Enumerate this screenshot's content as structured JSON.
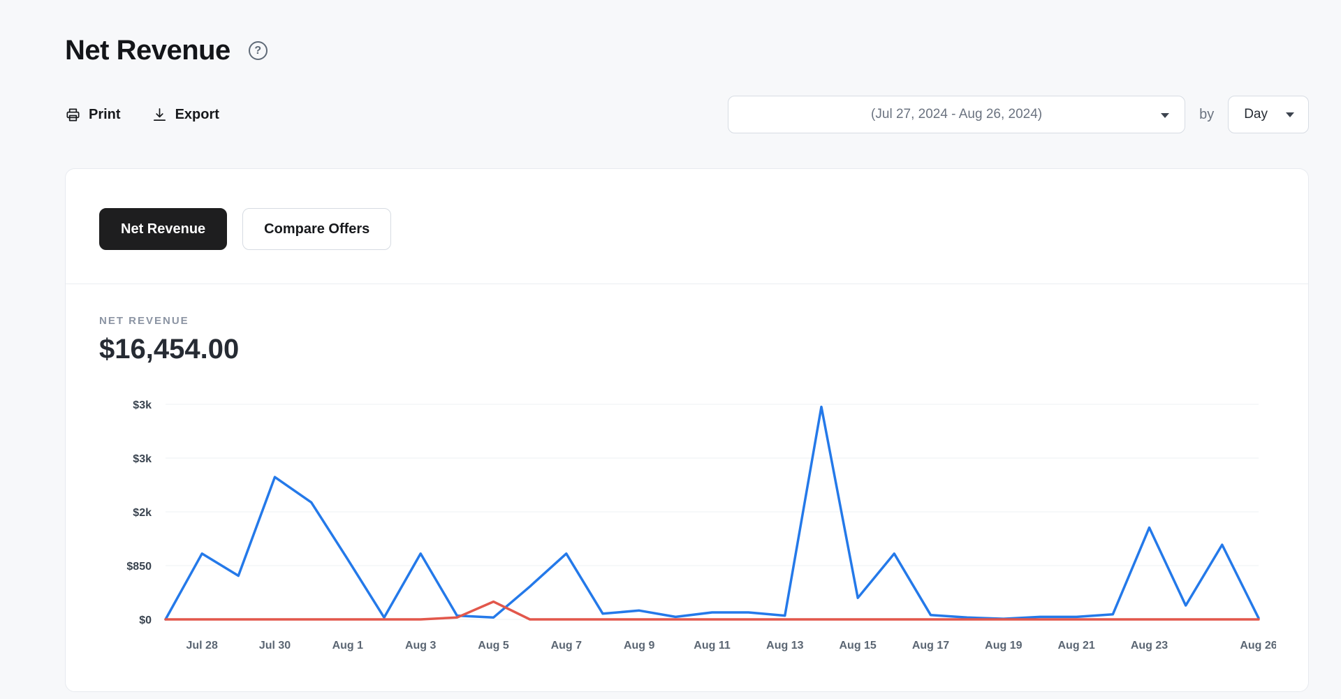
{
  "page": {
    "title": "Net Revenue",
    "help_glyph": "?"
  },
  "toolbar": {
    "print_label": "Print",
    "export_label": "Export",
    "date_range": "(Jul 27, 2024 - Aug 26, 2024)",
    "by_label": "by",
    "granularity": "Day"
  },
  "card": {
    "tabs": [
      {
        "label": "Net Revenue",
        "active": true
      },
      {
        "label": "Compare Offers",
        "active": false
      }
    ],
    "metric_label": "NET REVENUE",
    "metric_value": "$16,454.00"
  },
  "colors": {
    "primary_line": "#2479e9",
    "secondary_line": "#e2574b",
    "active_tab_bg": "#1e1e1f",
    "card_bg": "#ffffff",
    "page_bg": "#f7f8fa"
  },
  "chart_data": {
    "type": "line",
    "title": "Net Revenue",
    "x": [
      "Jul 27",
      "Jul 28",
      "Jul 29",
      "Jul 30",
      "Jul 31",
      "Aug 1",
      "Aug 2",
      "Aug 3",
      "Aug 4",
      "Aug 5",
      "Aug 6",
      "Aug 7",
      "Aug 8",
      "Aug 9",
      "Aug 10",
      "Aug 11",
      "Aug 12",
      "Aug 13",
      "Aug 14",
      "Aug 15",
      "Aug 16",
      "Aug 17",
      "Aug 18",
      "Aug 19",
      "Aug 20",
      "Aug 21",
      "Aug 22",
      "Aug 23",
      "Aug 24",
      "Aug 25",
      "Aug 26"
    ],
    "x_ticks": [
      {
        "index": 1,
        "label": "Jul 28"
      },
      {
        "index": 3,
        "label": "Jul 30"
      },
      {
        "index": 5,
        "label": "Aug 1"
      },
      {
        "index": 7,
        "label": "Aug 3"
      },
      {
        "index": 9,
        "label": "Aug 5"
      },
      {
        "index": 11,
        "label": "Aug 7"
      },
      {
        "index": 13,
        "label": "Aug 9"
      },
      {
        "index": 15,
        "label": "Aug 11"
      },
      {
        "index": 17,
        "label": "Aug 13"
      },
      {
        "index": 19,
        "label": "Aug 15"
      },
      {
        "index": 21,
        "label": "Aug 17"
      },
      {
        "index": 23,
        "label": "Aug 19"
      },
      {
        "index": 25,
        "label": "Aug 21"
      },
      {
        "index": 27,
        "label": "Aug 23"
      },
      {
        "index": 30,
        "label": "Aug 26"
      }
    ],
    "y_ticks": [
      {
        "value": 0,
        "label": "$0"
      },
      {
        "value": 850,
        "label": "$850"
      },
      {
        "value": 1700,
        "label": "$2k"
      },
      {
        "value": 2550,
        "label": "$3k"
      },
      {
        "value": 3400,
        "label": "$3k"
      }
    ],
    "ylim": [
      0,
      3400
    ],
    "grid": true,
    "legend": "none",
    "series": [
      {
        "color": "#2479e9",
        "values": [
          0,
          1040,
          690,
          2250,
          1850,
          950,
          30,
          1040,
          60,
          30,
          520,
          1040,
          90,
          140,
          40,
          110,
          110,
          60,
          3360,
          340,
          1040,
          70,
          30,
          10,
          40,
          40,
          80,
          1450,
          220,
          1180,
          20
        ]
      },
      {
        "color": "#e2574b",
        "values": [
          0,
          0,
          0,
          0,
          0,
          0,
          0,
          0,
          30,
          280,
          0,
          0,
          0,
          0,
          0,
          0,
          0,
          0,
          0,
          0,
          0,
          0,
          0,
          0,
          0,
          0,
          0,
          0,
          0,
          0,
          0
        ]
      }
    ]
  }
}
